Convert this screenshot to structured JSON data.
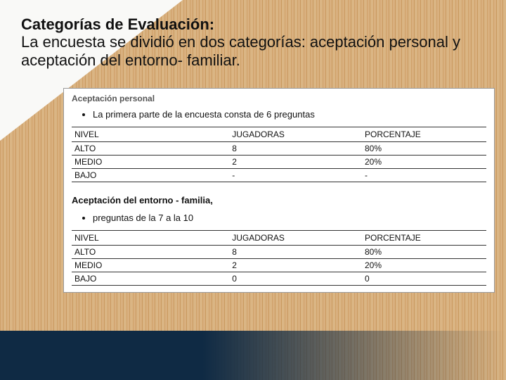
{
  "heading": {
    "title": "Categorías de Evaluación:",
    "body": "La encuesta se dividió en dos categorías: aceptación personal y aceptación del entorno- familiar."
  },
  "panel": {
    "section1": {
      "title": "Aceptación personal",
      "bullet": "La primera parte de la encuesta consta de 6 preguntas",
      "table": {
        "columns": [
          "NIVEL",
          "JUGADORAS",
          "PORCENTAJE"
        ],
        "rows": [
          [
            "ALTO",
            "8",
            "80%"
          ],
          [
            "MEDIO",
            "2",
            "20%"
          ],
          [
            "BAJO",
            "-",
            "-"
          ]
        ],
        "col_widths": [
          "38%",
          "32%",
          "30%"
        ],
        "border_color": "#333333",
        "font_size": 12
      }
    },
    "section2": {
      "title": "Aceptación del entorno - familia,",
      "bullet": "preguntas de la 7 a la 10",
      "table": {
        "columns": [
          "NIVEL",
          "JUGADORAS",
          "PORCENTAJE"
        ],
        "rows": [
          [
            "ALTO",
            "8",
            "80%"
          ],
          [
            "MEDIO",
            "2",
            "20%"
          ],
          [
            "BAJO",
            "0",
            "0"
          ]
        ],
        "col_widths": [
          "38%",
          "32%",
          "30%"
        ],
        "border_color": "#333333",
        "font_size": 12
      }
    }
  },
  "style": {
    "page_bg": "#cfa068",
    "panel_bg": "#ffffff",
    "heading_font_size": 22,
    "heading_color": "#111111",
    "bottom_stripe_color": "#0f2a44",
    "corner_color": "#f9f9f7"
  }
}
